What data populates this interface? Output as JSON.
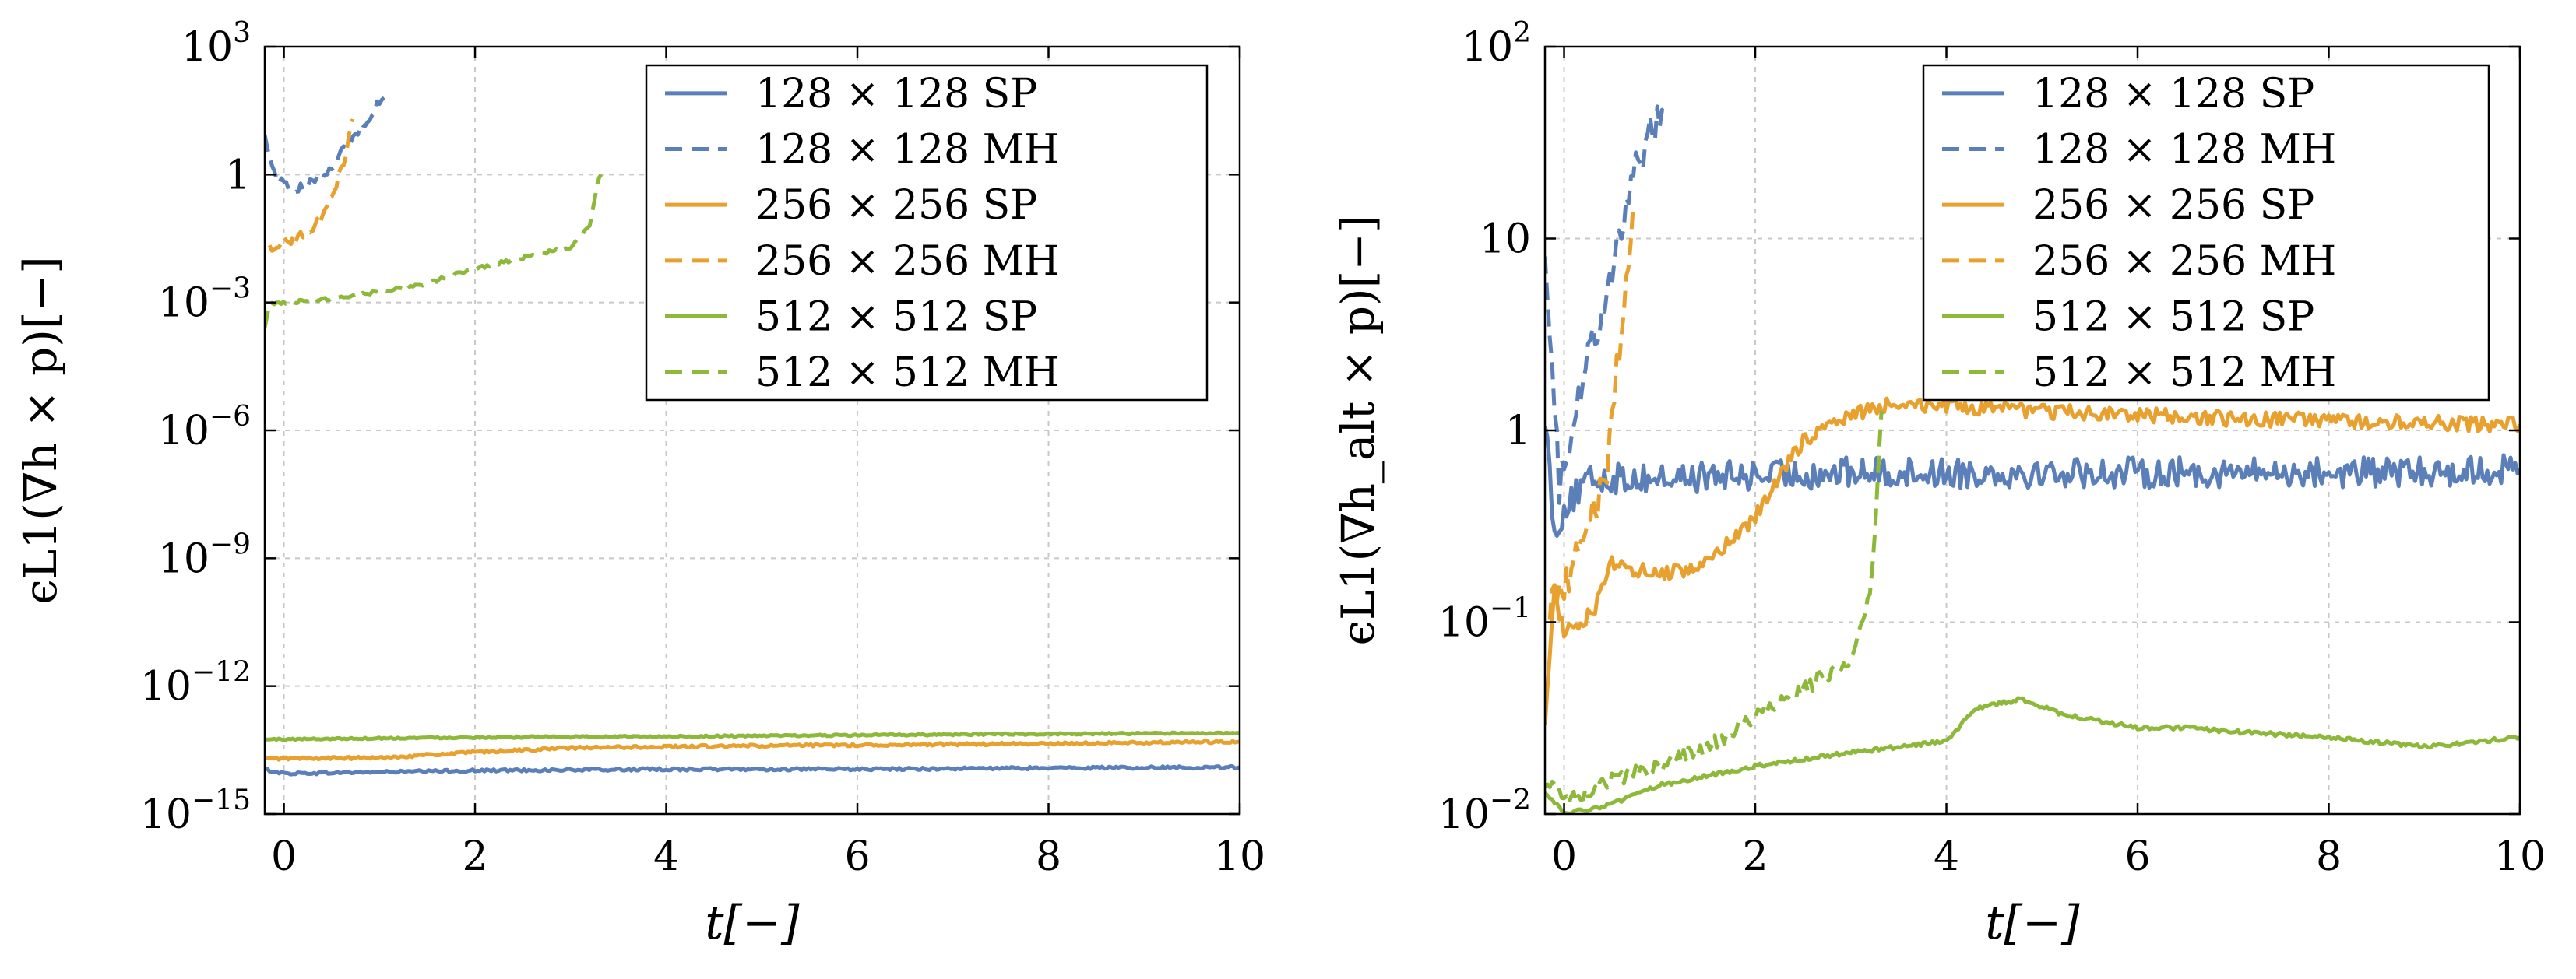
{
  "figure": {
    "title": ""
  },
  "chart_data": [
    {
      "type": "line",
      "title": "",
      "xlabel": "t[−]",
      "ylabel": "ϵL1(∇h × p)[−]",
      "yscale": "log",
      "xlim": [
        -0.2,
        10
      ],
      "ylim_exp": [
        -15,
        3
      ],
      "xticks": [
        0,
        2,
        4,
        6,
        8,
        10
      ],
      "xtick_labels": [
        "0",
        "2",
        "4",
        "6",
        "8",
        "10"
      ],
      "yticks_exp": [
        -15,
        -12,
        -9,
        -6,
        -3,
        0,
        3
      ],
      "ytick_labels": [
        {
          "base": "10",
          "exp": "−15"
        },
        {
          "base": "10",
          "exp": "−12"
        },
        {
          "base": "10",
          "exp": "−9"
        },
        {
          "base": "10",
          "exp": "−6"
        },
        {
          "base": "10",
          "exp": "−3"
        },
        {
          "base": "1",
          "exp": ""
        },
        {
          "base": "10",
          "exp": "3"
        }
      ],
      "grid": true,
      "legend_position": "top-right",
      "series": [
        {
          "name": "128 × 128  SP",
          "color": "#5b7fb8",
          "dash": "solid",
          "points": [
            [
              -0.2,
              -13.95
            ],
            [
              0,
              -14.05
            ],
            [
              2,
              -13.98
            ],
            [
              4,
              -13.95
            ],
            [
              6,
              -13.95
            ],
            [
              8,
              -13.92
            ],
            [
              10,
              -13.9
            ]
          ],
          "noise": 0.03
        },
        {
          "name": "128 × 128 MH",
          "color": "#5b7fb8",
          "dash": "dashed",
          "points": [
            [
              -0.2,
              0.9
            ],
            [
              -0.1,
              0.0
            ],
            [
              0.1,
              -0.4
            ],
            [
              0.3,
              -0.2
            ],
            [
              0.5,
              0.2
            ],
            [
              0.7,
              0.8
            ],
            [
              0.9,
              1.4
            ],
            [
              1.05,
              1.8
            ]
          ],
          "noise": 0.12
        },
        {
          "name": "256 × 256  SP",
          "color": "#e8a12e",
          "dash": "solid",
          "points": [
            [
              -0.2,
              -13.7
            ],
            [
              1,
              -13.68
            ],
            [
              2,
              -13.55
            ],
            [
              3,
              -13.45
            ],
            [
              4,
              -13.42
            ],
            [
              6,
              -13.38
            ],
            [
              8,
              -13.35
            ],
            [
              10,
              -13.3
            ]
          ],
          "noise": 0.03
        },
        {
          "name": "256 × 256 MH",
          "color": "#e8a12e",
          "dash": "dashed",
          "points": [
            [
              -0.15,
              -1.7
            ],
            [
              0.1,
              -1.5
            ],
            [
              0.3,
              -1.3
            ],
            [
              0.45,
              -0.8
            ],
            [
              0.55,
              -0.2
            ],
            [
              0.65,
              0.5
            ],
            [
              0.72,
              1.3
            ]
          ],
          "noise": 0.12
        },
        {
          "name": "512 × 512  SP",
          "color": "#8db83a",
          "dash": "solid",
          "points": [
            [
              -0.2,
              -13.25
            ],
            [
              2,
              -13.2
            ],
            [
              4,
              -13.18
            ],
            [
              6,
              -13.15
            ],
            [
              8,
              -13.12
            ],
            [
              10,
              -13.1
            ]
          ],
          "noise": 0.02
        },
        {
          "name": "512 × 512 MH",
          "color": "#8db83a",
          "dash": "dashed",
          "points": [
            [
              -0.2,
              -3.6
            ],
            [
              -0.15,
              -3.05
            ],
            [
              0.5,
              -2.9
            ],
            [
              1.0,
              -2.75
            ],
            [
              1.5,
              -2.55
            ],
            [
              2.0,
              -2.2
            ],
            [
              2.5,
              -1.95
            ],
            [
              3.0,
              -1.7
            ],
            [
              3.2,
              -1.2
            ],
            [
              3.28,
              -0.2
            ],
            [
              3.32,
              0.0
            ]
          ],
          "noise": 0.04
        }
      ]
    },
    {
      "type": "line",
      "title": "",
      "xlabel": "t[−]",
      "ylabel": "ϵL1(∇h_alt × p)[−]",
      "yscale": "log",
      "xlim": [
        -0.2,
        10
      ],
      "ylim_exp": [
        -2,
        2
      ],
      "xticks": [
        0,
        2,
        4,
        6,
        8,
        10
      ],
      "xtick_labels": [
        "0",
        "2",
        "4",
        "6",
        "8",
        "10"
      ],
      "yticks_exp": [
        -2,
        -1,
        0,
        1,
        2
      ],
      "ytick_labels": [
        {
          "base": "10",
          "exp": "−2"
        },
        {
          "base": "10",
          "exp": "−1"
        },
        {
          "base": "1",
          "exp": ""
        },
        {
          "base": "10",
          "exp": ""
        },
        {
          "base": "10",
          "exp": "2"
        }
      ],
      "grid": true,
      "legend_position": "top-right",
      "series": [
        {
          "name": "128 × 128  SP",
          "color": "#5b7fb8",
          "dash": "solid",
          "points": [
            [
              -0.2,
              0.1
            ],
            [
              -0.1,
              -0.55
            ],
            [
              0,
              -0.4
            ],
            [
              0.3,
              -0.25
            ],
            [
              1,
              -0.25
            ],
            [
              3,
              -0.22
            ],
            [
              5,
              -0.22
            ],
            [
              7,
              -0.22
            ],
            [
              9,
              -0.22
            ],
            [
              10,
              -0.2
            ]
          ],
          "noise": 0.08
        },
        {
          "name": "128 × 128 MH",
          "color": "#5b7fb8",
          "dash": "dashed",
          "points": [
            [
              -0.2,
              1.0
            ],
            [
              -0.05,
              -0.3
            ],
            [
              0.15,
              0.2
            ],
            [
              0.35,
              0.55
            ],
            [
              0.55,
              0.95
            ],
            [
              0.75,
              1.35
            ],
            [
              0.9,
              1.55
            ],
            [
              1.05,
              1.65
            ]
          ],
          "noise": 0.1
        },
        {
          "name": "256 × 256  SP",
          "color": "#e8a12e",
          "dash": "solid",
          "points": [
            [
              -0.2,
              -1.5
            ],
            [
              -0.1,
              -0.85
            ],
            [
              0,
              -1.05
            ],
            [
              0.3,
              -0.95
            ],
            [
              0.5,
              -0.7
            ],
            [
              1.0,
              -0.75
            ],
            [
              1.5,
              -0.7
            ],
            [
              2.0,
              -0.45
            ],
            [
              2.5,
              -0.05
            ],
            [
              3.0,
              0.08
            ],
            [
              3.5,
              0.15
            ],
            [
              4.0,
              0.12
            ],
            [
              5.0,
              0.1
            ],
            [
              6.0,
              0.08
            ],
            [
              7.0,
              0.06
            ],
            [
              8.0,
              0.05
            ],
            [
              9.0,
              0.04
            ],
            [
              10,
              0.03
            ]
          ],
          "noise": 0.04
        },
        {
          "name": "256 × 256 MH",
          "color": "#e8a12e",
          "dash": "dashed",
          "points": [
            [
              -0.15,
              -0.9
            ],
            [
              0.1,
              -0.7
            ],
            [
              0.3,
              -0.45
            ],
            [
              0.45,
              -0.2
            ],
            [
              0.55,
              0.3
            ],
            [
              0.65,
              0.8
            ],
            [
              0.72,
              1.15
            ]
          ],
          "noise": 0.1
        },
        {
          "name": "512 × 512  SP",
          "color": "#8db83a",
          "dash": "solid",
          "points": [
            [
              -0.2,
              -1.88
            ],
            [
              0,
              -2.0
            ],
            [
              0.5,
              -1.95
            ],
            [
              1,
              -1.85
            ],
            [
              2,
              -1.75
            ],
            [
              3,
              -1.68
            ],
            [
              4,
              -1.62
            ],
            [
              4.3,
              -1.45
            ],
            [
              4.8,
              -1.4
            ],
            [
              5.2,
              -1.48
            ],
            [
              6,
              -1.55
            ],
            [
              6.5,
              -1.55
            ],
            [
              7,
              -1.57
            ],
            [
              8,
              -1.6
            ],
            [
              9,
              -1.65
            ],
            [
              10,
              -1.6
            ]
          ],
          "noise": 0.01
        },
        {
          "name": "512 × 512 MH",
          "color": "#8db83a",
          "dash": "dashed",
          "points": [
            [
              -0.2,
              -1.83
            ],
            [
              0,
              -1.93
            ],
            [
              0.5,
              -1.82
            ],
            [
              1.0,
              -1.75
            ],
            [
              1.5,
              -1.65
            ],
            [
              2.0,
              -1.5
            ],
            [
              2.5,
              -1.35
            ],
            [
              3.0,
              -1.2
            ],
            [
              3.2,
              -0.85
            ],
            [
              3.28,
              -0.3
            ],
            [
              3.32,
              0.1
            ]
          ],
          "noise": 0.04
        }
      ]
    }
  ]
}
